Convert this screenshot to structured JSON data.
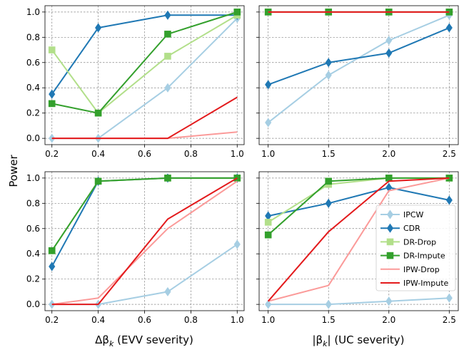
{
  "figure": {
    "ylabel": "Power",
    "xlabel_left_prefix": "Δβ",
    "xlabel_left_sub": "k",
    "xlabel_left_suffix": " (EVV severity)",
    "xlabel_right_prefix": "|β",
    "xlabel_right_sub": "k",
    "xlabel_right_suffix": "| (UC severity)"
  },
  "styles": {
    "IPCW": {
      "color": "#a6cee3",
      "marker": "diamond",
      "linewidth": 2
    },
    "CDR": {
      "color": "#1f78b4",
      "marker": "diamond",
      "linewidth": 2
    },
    "DR-Drop": {
      "color": "#b2df8a",
      "marker": "square",
      "linewidth": 2
    },
    "DR-Impute": {
      "color": "#33a02c",
      "marker": "square",
      "linewidth": 2
    },
    "IPW-Drop": {
      "color": "#fb9a99",
      "marker": "none",
      "linewidth": 2
    },
    "IPW-Impute": {
      "color": "#e31a1c",
      "marker": "none",
      "linewidth": 2
    }
  },
  "legend": {
    "placement": "lower-right of bottom-right panel",
    "entries": [
      "IPCW",
      "CDR",
      "DR-Drop",
      "DR-Impute",
      "IPW-Drop",
      "IPW-Impute"
    ]
  },
  "chart_data": [
    {
      "type": "line",
      "panel": "top-left",
      "x": [
        0.2,
        0.4,
        0.7,
        1.0
      ],
      "xticks": [
        "0.2",
        "0.4",
        "0.6",
        "0.8",
        "1.0"
      ],
      "xtick_values": [
        0.2,
        0.4,
        0.6,
        0.8,
        1.0
      ],
      "xlim": [
        0.17,
        1.03
      ],
      "yticks": [
        "0.0",
        "0.2",
        "0.4",
        "0.6",
        "0.8",
        "1.0"
      ],
      "yticks_shown": true,
      "ylim": [
        -0.05,
        1.05
      ],
      "grid": true,
      "series": [
        {
          "name": "IPCW",
          "values": [
            0.0,
            0.0,
            0.4,
            0.95
          ]
        },
        {
          "name": "CDR",
          "values": [
            0.35,
            0.875,
            0.975,
            0.975
          ]
        },
        {
          "name": "DR-Drop",
          "values": [
            0.7,
            0.2,
            0.65,
            0.975
          ]
        },
        {
          "name": "DR-Impute",
          "values": [
            0.275,
            0.2,
            0.825,
            1.0
          ]
        },
        {
          "name": "IPW-Drop",
          "values": [
            0.0,
            0.0,
            0.0,
            0.05
          ]
        },
        {
          "name": "IPW-Impute",
          "values": [
            0.0,
            0.0,
            0.0,
            0.325
          ]
        }
      ]
    },
    {
      "type": "line",
      "panel": "top-right",
      "x": [
        1.0,
        1.5,
        2.0,
        2.5
      ],
      "xticks": [
        "1.0",
        "1.5",
        "2.0",
        "2.5"
      ],
      "xtick_values": [
        1.0,
        1.5,
        2.0,
        2.5
      ],
      "xlim": [
        0.925,
        2.575
      ],
      "yticks": [],
      "yticks_shown": false,
      "ylim": [
        -0.05,
        1.05
      ],
      "grid": true,
      "series": [
        {
          "name": "IPCW",
          "values": [
            0.125,
            0.5,
            0.775,
            0.975
          ]
        },
        {
          "name": "CDR",
          "values": [
            0.425,
            0.6,
            0.675,
            0.875
          ]
        },
        {
          "name": "DR-Drop",
          "values": [
            1.0,
            1.0,
            1.0,
            1.0
          ]
        },
        {
          "name": "DR-Impute",
          "values": [
            1.0,
            1.0,
            1.0,
            1.0
          ]
        },
        {
          "name": "IPW-Drop",
          "values": [
            1.0,
            1.0,
            1.0,
            1.0
          ]
        },
        {
          "name": "IPW-Impute",
          "values": [
            1.0,
            1.0,
            1.0,
            1.0
          ]
        }
      ]
    },
    {
      "type": "line",
      "panel": "bottom-left",
      "x": [
        0.2,
        0.4,
        0.7,
        1.0
      ],
      "xticks": [
        "0.2",
        "0.4",
        "0.6",
        "0.8",
        "1.0"
      ],
      "xtick_values": [
        0.2,
        0.4,
        0.6,
        0.8,
        1.0
      ],
      "xlim": [
        0.17,
        1.03
      ],
      "yticks": [
        "0.0",
        "0.2",
        "0.4",
        "0.6",
        "0.8",
        "1.0"
      ],
      "yticks_shown": true,
      "ylim": [
        -0.05,
        1.05
      ],
      "grid": true,
      "series": [
        {
          "name": "IPCW",
          "values": [
            0.0,
            0.0,
            0.1,
            0.475
          ]
        },
        {
          "name": "CDR",
          "values": [
            0.3,
            0.975,
            1.0,
            1.0
          ]
        },
        {
          "name": "DR-Drop",
          "values": [
            0.425,
            0.975,
            1.0,
            1.0
          ]
        },
        {
          "name": "DR-Impute",
          "values": [
            0.425,
            0.975,
            1.0,
            1.0
          ]
        },
        {
          "name": "IPW-Drop",
          "values": [
            0.0,
            0.05,
            0.6,
            0.975
          ]
        },
        {
          "name": "IPW-Impute",
          "values": [
            0.0,
            0.0,
            0.675,
            1.0
          ]
        }
      ]
    },
    {
      "type": "line",
      "panel": "bottom-right",
      "x": [
        1.0,
        1.5,
        2.0,
        2.5
      ],
      "xticks": [
        "1.0",
        "1.5",
        "2.0",
        "2.5"
      ],
      "xtick_values": [
        1.0,
        1.5,
        2.0,
        2.5
      ],
      "xlim": [
        0.925,
        2.575
      ],
      "yticks": [],
      "yticks_shown": false,
      "ylim": [
        -0.05,
        1.05
      ],
      "grid": true,
      "series": [
        {
          "name": "IPCW",
          "values": [
            0.0,
            0.0,
            0.025,
            0.05
          ]
        },
        {
          "name": "CDR",
          "values": [
            0.7,
            0.8,
            0.925,
            0.825
          ]
        },
        {
          "name": "DR-Drop",
          "values": [
            0.65,
            0.95,
            1.0,
            1.0
          ]
        },
        {
          "name": "DR-Impute",
          "values": [
            0.55,
            0.975,
            1.0,
            1.0
          ]
        },
        {
          "name": "IPW-Drop",
          "values": [
            0.025,
            0.15,
            0.9,
            1.0
          ]
        },
        {
          "name": "IPW-Impute",
          "values": [
            0.025,
            0.575,
            0.975,
            1.0
          ]
        }
      ]
    }
  ]
}
